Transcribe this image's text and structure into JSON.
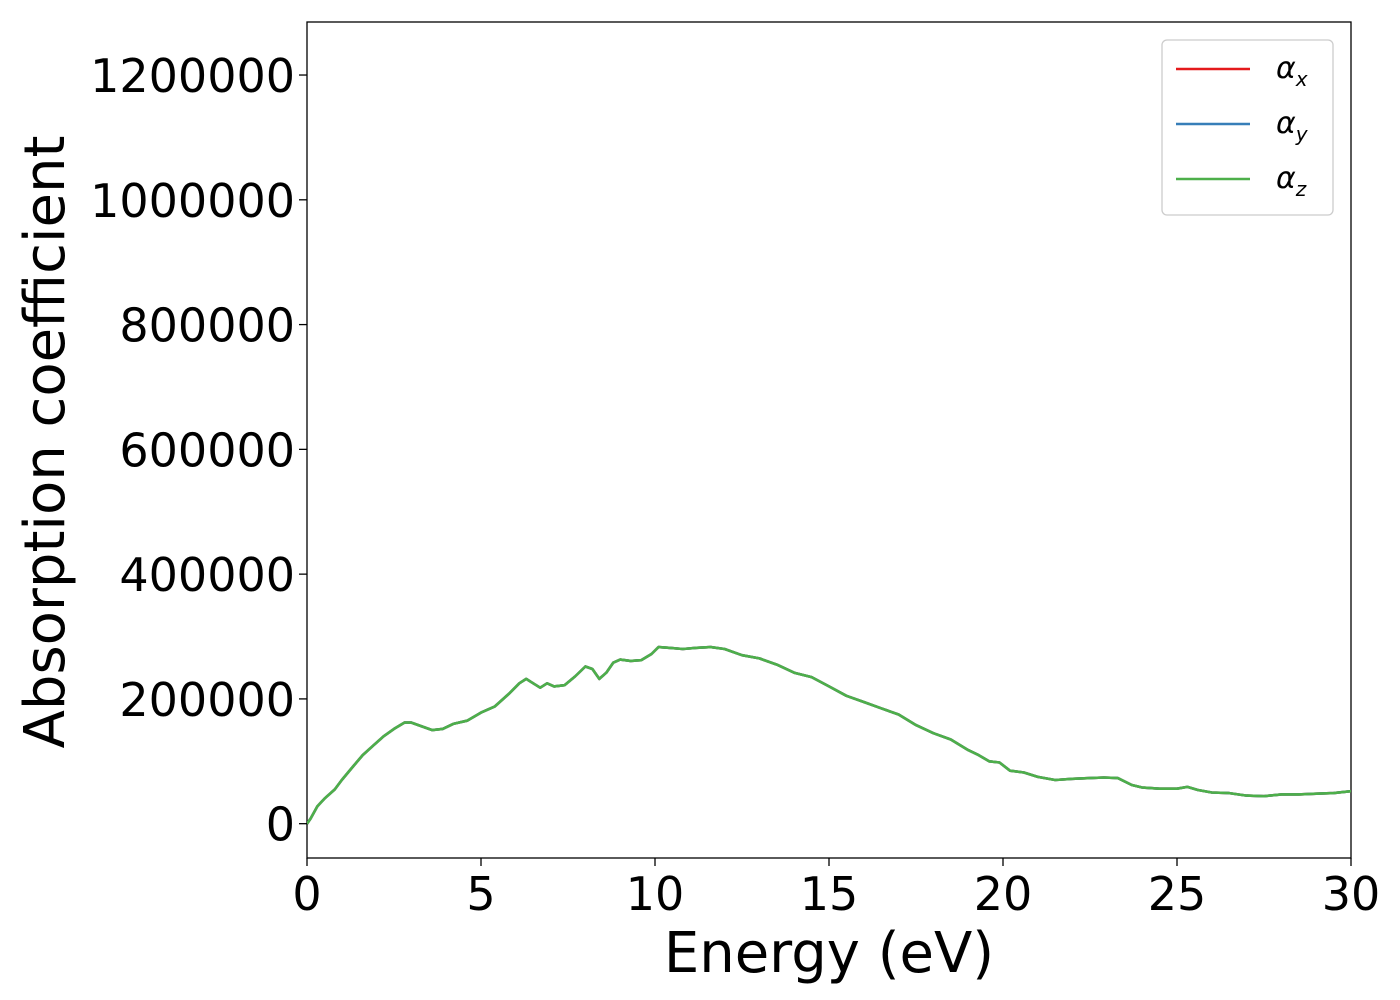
{
  "chart_data": {
    "type": "line",
    "title": "",
    "xlabel": "Energy (eV)",
    "ylabel": "Absorption coefficient",
    "xlim": [
      0,
      30
    ],
    "ylim": [
      -55000,
      1285000
    ],
    "xticks": [
      0,
      5,
      10,
      15,
      20,
      25,
      30
    ],
    "xtick_labels": [
      "0",
      "5",
      "10",
      "15",
      "20",
      "25",
      "30"
    ],
    "yticks": [
      0,
      200000,
      400000,
      600000,
      800000,
      1000000,
      1200000
    ],
    "ytick_labels": [
      "0",
      "200000",
      "400000",
      "600000",
      "800000",
      "1000000",
      "1200000"
    ],
    "grid": false,
    "legend_position": "top-right",
    "x": [
      0,
      0.1,
      0.3,
      0.5,
      0.8,
      1.0,
      1.3,
      1.6,
      1.9,
      2.2,
      2.5,
      2.8,
      3.0,
      3.3,
      3.6,
      3.9,
      4.2,
      4.6,
      5.0,
      5.4,
      5.8,
      6.1,
      6.3,
      6.5,
      6.7,
      6.9,
      7.1,
      7.4,
      7.7,
      8.0,
      8.2,
      8.4,
      8.6,
      8.8,
      9.0,
      9.3,
      9.6,
      9.9,
      10.1,
      10.4,
      10.8,
      11.2,
      11.6,
      12.0,
      12.5,
      13.0,
      13.5,
      14.0,
      14.5,
      15.0,
      15.5,
      16.0,
      16.5,
      17.0,
      17.5,
      18.0,
      18.5,
      19.0,
      19.3,
      19.6,
      19.9,
      20.2,
      20.6,
      21.0,
      21.5,
      22.0,
      22.5,
      22.9,
      23.3,
      23.7,
      24.0,
      24.5,
      25.0,
      25.3,
      25.6,
      26.0,
      26.5,
      27.0,
      27.5,
      28.0,
      28.5,
      29.0,
      29.5,
      30.0
    ],
    "series": [
      {
        "name": "α_x",
        "color": "#e41a1c",
        "values": [
          0,
          8000,
          28000,
          40000,
          55000,
          70000,
          90000,
          110000,
          125000,
          140000,
          152000,
          162000,
          162000,
          156000,
          150000,
          152000,
          160000,
          165000,
          178000,
          188000,
          208000,
          225000,
          232000,
          225000,
          218000,
          225000,
          220000,
          222000,
          236000,
          252000,
          248000,
          232000,
          242000,
          258000,
          263000,
          261000,
          262000,
          272000,
          283000,
          282000,
          280000,
          282000,
          283000,
          280000,
          270000,
          265000,
          255000,
          242000,
          235000,
          220000,
          205000,
          195000,
          185000,
          175000,
          158000,
          145000,
          135000,
          118000,
          110000,
          100000,
          98000,
          85000,
          82000,
          75000,
          70000,
          72000,
          73000,
          74000,
          73000,
          62000,
          58000,
          56000,
          56000,
          59000,
          54000,
          50000,
          49000,
          45000,
          44000,
          47000,
          47000,
          48000,
          49000,
          52000
        ]
      },
      {
        "name": "α_y",
        "color": "#377eb8",
        "values": [
          0,
          8000,
          28000,
          40000,
          55000,
          70000,
          90000,
          110000,
          125000,
          140000,
          152000,
          162000,
          162000,
          156000,
          150000,
          152000,
          160000,
          165000,
          178000,
          188000,
          208000,
          225000,
          232000,
          225000,
          218000,
          225000,
          220000,
          222000,
          236000,
          252000,
          248000,
          232000,
          242000,
          258000,
          263000,
          261000,
          262000,
          272000,
          283000,
          282000,
          280000,
          282000,
          283000,
          280000,
          270000,
          265000,
          255000,
          242000,
          235000,
          220000,
          205000,
          195000,
          185000,
          175000,
          158000,
          145000,
          135000,
          118000,
          110000,
          100000,
          98000,
          85000,
          82000,
          75000,
          70000,
          72000,
          73000,
          74000,
          73000,
          62000,
          58000,
          56000,
          56000,
          59000,
          54000,
          50000,
          49000,
          45000,
          44000,
          47000,
          47000,
          48000,
          49000,
          52000
        ]
      },
      {
        "name": "α_z",
        "color": "#4daf4a",
        "values": [
          0,
          8000,
          28000,
          40000,
          55000,
          70000,
          90000,
          110000,
          125000,
          140000,
          152000,
          162000,
          162000,
          156000,
          150000,
          152000,
          160000,
          165000,
          178000,
          188000,
          208000,
          225000,
          232000,
          225000,
          218000,
          225000,
          220000,
          222000,
          236000,
          252000,
          248000,
          232000,
          242000,
          258000,
          263000,
          261000,
          262000,
          272000,
          283000,
          282000,
          280000,
          282000,
          283000,
          280000,
          270000,
          265000,
          255000,
          242000,
          235000,
          220000,
          205000,
          195000,
          185000,
          175000,
          158000,
          145000,
          135000,
          118000,
          110000,
          100000,
          98000,
          85000,
          82000,
          75000,
          70000,
          72000,
          73000,
          74000,
          73000,
          62000,
          58000,
          56000,
          56000,
          59000,
          54000,
          50000,
          49000,
          45000,
          44000,
          47000,
          47000,
          48000,
          49000,
          52000
        ]
      }
    ],
    "legend": [
      {
        "symbol": "α",
        "subscript": "x"
      },
      {
        "symbol": "α",
        "subscript": "y"
      },
      {
        "symbol": "α",
        "subscript": "z"
      }
    ]
  }
}
